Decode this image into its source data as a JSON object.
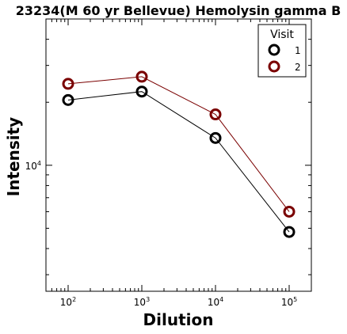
{
  "chart_data": {
    "type": "line",
    "title": "23234(M 60 yr Bellevue) Hemolysin gamma B",
    "xlabel": "Dilution",
    "ylabel": "Intensity",
    "x_scale": "log",
    "y_scale": "log",
    "xlim": [
      50,
      200000
    ],
    "ylim": [
      2500,
      50000
    ],
    "x": [
      100,
      1000,
      10000,
      100000
    ],
    "x_ticks": [
      {
        "value": 100,
        "base": "10",
        "exp": "2"
      },
      {
        "value": 1000,
        "base": "10",
        "exp": "3"
      },
      {
        "value": 10000,
        "base": "10",
        "exp": "4"
      },
      {
        "value": 100000,
        "base": "10",
        "exp": "5"
      }
    ],
    "y_ticks": [
      {
        "value": 10000,
        "base": "10",
        "exp": "4"
      }
    ],
    "grid": false,
    "legend": {
      "title": "Visit",
      "placement": "top-right"
    },
    "series": [
      {
        "name": "1",
        "color": "#000000",
        "values": [
          20500,
          22500,
          13500,
          4800
        ]
      },
      {
        "name": "2",
        "color": "#7a0000",
        "values": [
          24500,
          26500,
          17500,
          6000
        ]
      }
    ]
  }
}
